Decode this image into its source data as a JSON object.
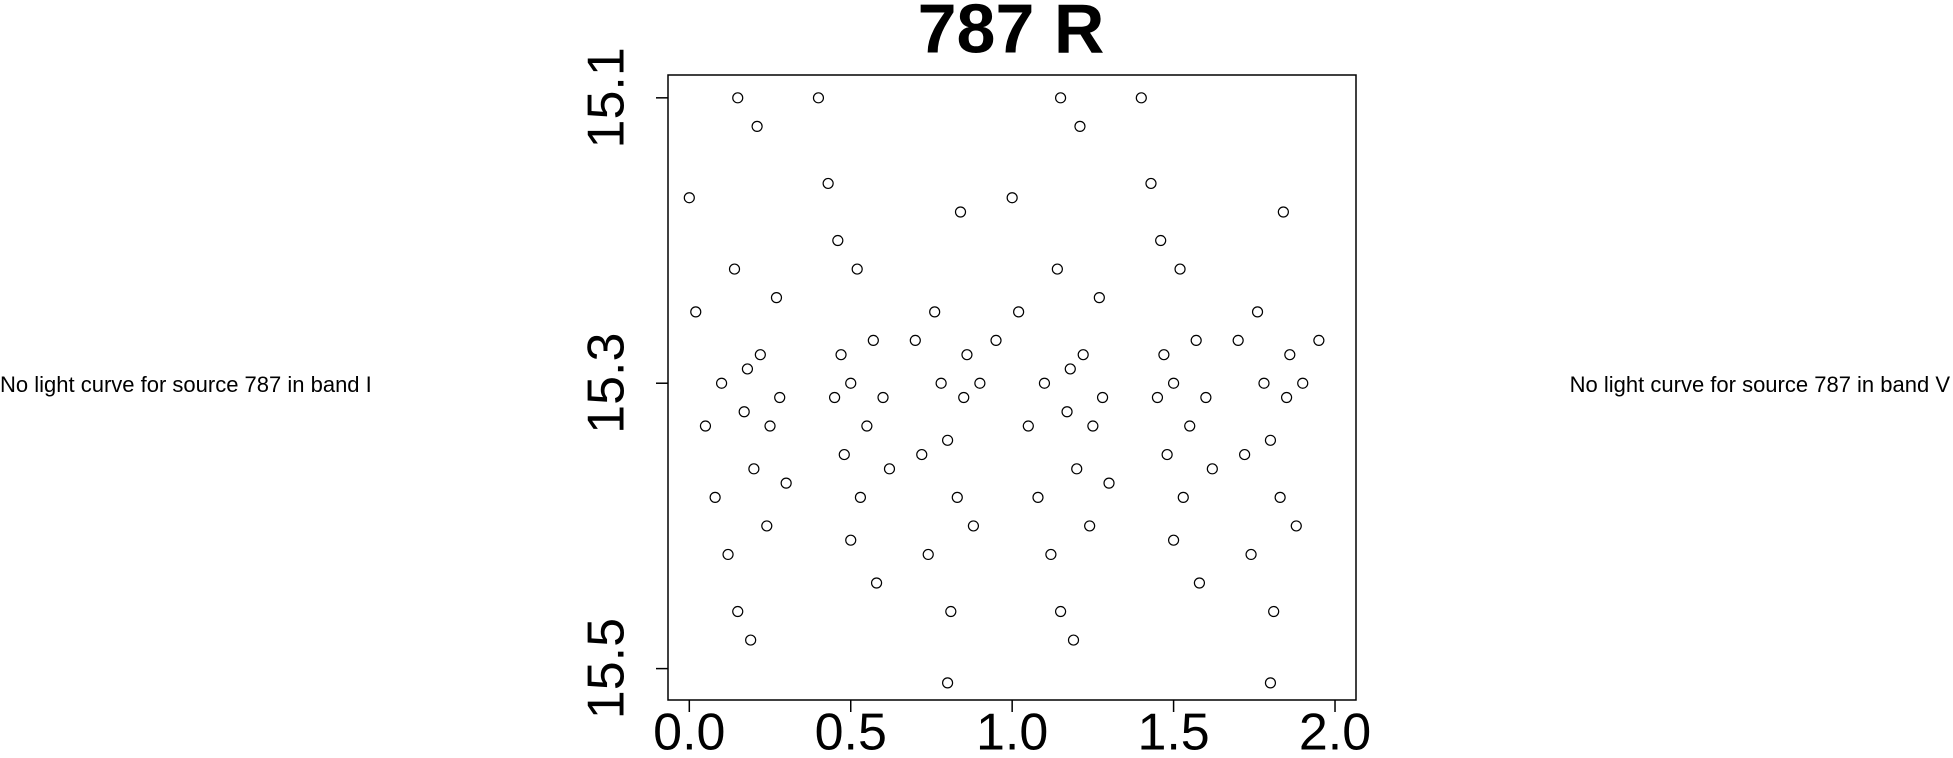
{
  "chart_data": {
    "type": "scatter",
    "title": "787 R",
    "xlim": [
      -0.066,
      2.065
    ],
    "ylim": [
      15.522,
      15.084
    ],
    "xticks": [
      {
        "value": 0,
        "label": "0.0"
      },
      {
        "value": 0.5,
        "label": "0.5"
      },
      {
        "value": 1,
        "label": "1.0"
      },
      {
        "value": 1.5,
        "label": "1.5"
      },
      {
        "value": 2,
        "label": "2.0"
      }
    ],
    "yticks": [
      15.1,
      15.3,
      15.5
    ],
    "color": "#000000",
    "x": [
      0.0,
      0.02,
      0.05,
      0.08,
      0.1,
      0.12,
      0.14,
      0.15,
      0.17,
      0.18,
      0.2,
      0.21,
      0.22,
      0.24,
      0.25,
      0.27,
      0.28,
      0.3,
      0.15,
      0.19,
      0.4,
      0.43,
      0.45,
      0.47,
      0.48,
      0.5,
      0.52,
      0.53,
      0.55,
      0.57,
      0.58,
      0.6,
      0.62,
      0.5,
      0.46,
      0.7,
      0.72,
      0.74,
      0.76,
      0.78,
      0.8,
      0.81,
      0.83,
      0.85,
      0.86,
      0.88,
      0.9,
      0.95,
      0.8,
      0.84,
      1.0,
      1.02,
      1.05,
      1.08,
      1.1,
      1.12,
      1.14,
      1.15,
      1.17,
      1.18,
      1.2,
      1.21,
      1.22,
      1.24,
      1.25,
      1.27,
      1.28,
      1.3,
      1.15,
      1.19,
      1.4,
      1.43,
      1.45,
      1.47,
      1.48,
      1.5,
      1.52,
      1.53,
      1.55,
      1.57,
      1.58,
      1.6,
      1.62,
      1.5,
      1.46,
      1.7,
      1.72,
      1.74,
      1.76,
      1.78,
      1.8,
      1.81,
      1.83,
      1.85,
      1.86,
      1.88,
      1.9,
      1.95,
      1.8,
      1.84
    ],
    "values": [
      15.17,
      15.25,
      15.33,
      15.38,
      15.3,
      15.42,
      15.22,
      15.46,
      15.32,
      15.29,
      15.36,
      15.12,
      15.28,
      15.4,
      15.33,
      15.24,
      15.31,
      15.37,
      15.1,
      15.48,
      15.1,
      15.16,
      15.31,
      15.28,
      15.35,
      15.3,
      15.22,
      15.38,
      15.33,
      15.27,
      15.44,
      15.31,
      15.36,
      15.41,
      15.2,
      15.27,
      15.35,
      15.42,
      15.25,
      15.3,
      15.34,
      15.46,
      15.38,
      15.31,
      15.28,
      15.4,
      15.3,
      15.27,
      15.51,
      15.18,
      15.17,
      15.25,
      15.33,
      15.38,
      15.3,
      15.42,
      15.22,
      15.46,
      15.32,
      15.29,
      15.36,
      15.12,
      15.28,
      15.4,
      15.33,
      15.24,
      15.31,
      15.37,
      15.1,
      15.48,
      15.1,
      15.16,
      15.31,
      15.28,
      15.35,
      15.3,
      15.22,
      15.38,
      15.33,
      15.27,
      15.44,
      15.31,
      15.36,
      15.41,
      15.2,
      15.27,
      15.35,
      15.42,
      15.25,
      15.3,
      15.34,
      15.46,
      15.38,
      15.31,
      15.28,
      15.4,
      15.3,
      15.27,
      15.51,
      15.18
    ]
  },
  "side_notes": [
    "No light curve for source 787 in band I",
    "No light curve for source 787 in band V"
  ]
}
